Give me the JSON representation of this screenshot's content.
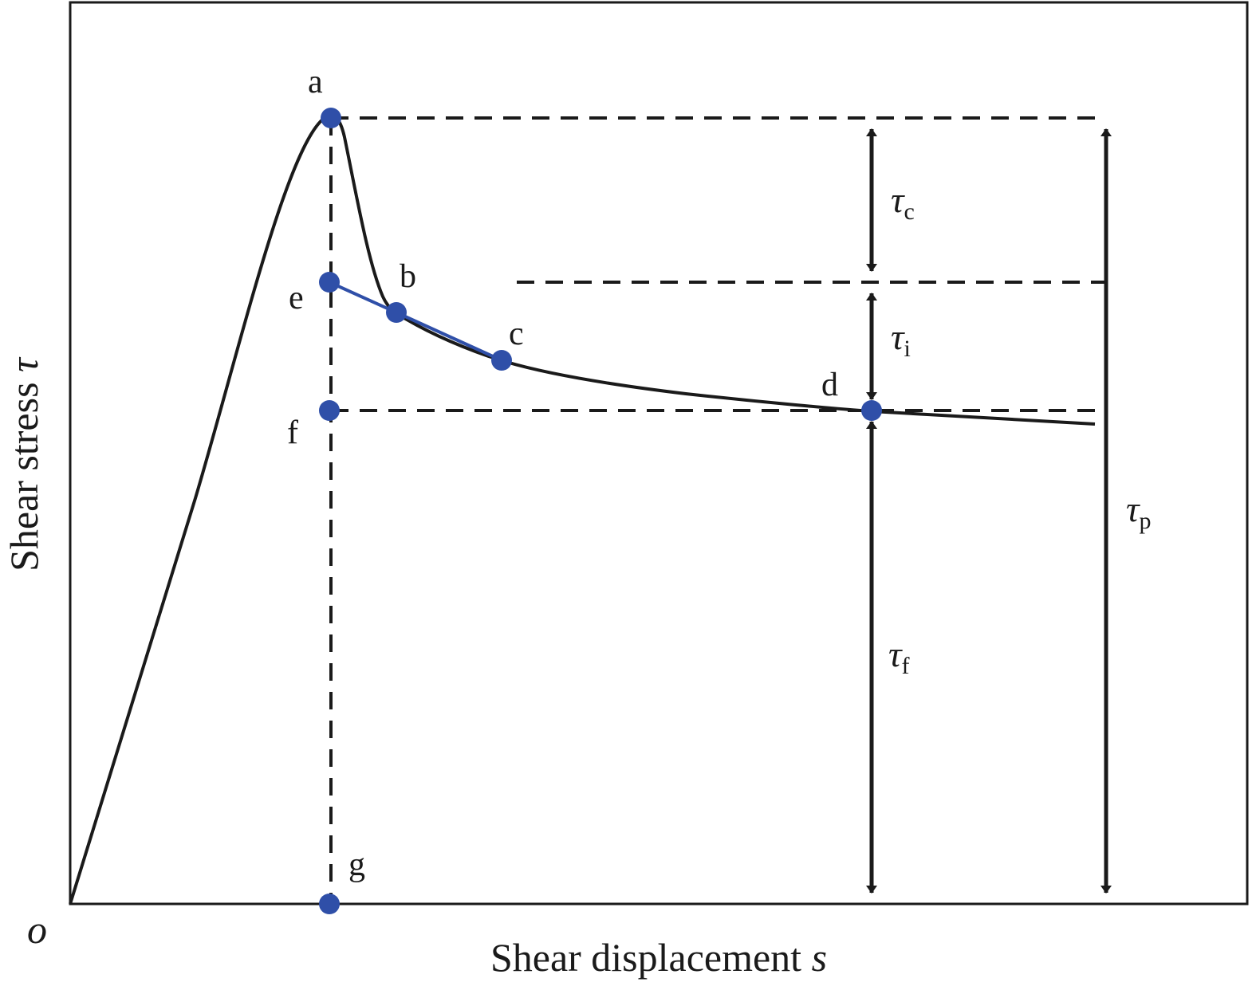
{
  "axes": {
    "x_label_text": "Shear displacement ",
    "x_label_var": "s",
    "y_label_text": "Shear stress ",
    "y_label_var": "τ",
    "origin_label": "o"
  },
  "points": {
    "a": "a",
    "b": "b",
    "c": "c",
    "d": "d",
    "e": "e",
    "f": "f",
    "g": "g"
  },
  "dimensions": {
    "tau_c": {
      "symbol": "τ",
      "sub": "c"
    },
    "tau_i": {
      "symbol": "τ",
      "sub": "i"
    },
    "tau_f": {
      "symbol": "τ",
      "sub": "f"
    },
    "tau_p": {
      "symbol": "τ",
      "sub": "p"
    }
  },
  "colors": {
    "curve": "#1a1a1a",
    "points": "#2f4fa8",
    "linear_segment": "#2f4fa8"
  }
}
